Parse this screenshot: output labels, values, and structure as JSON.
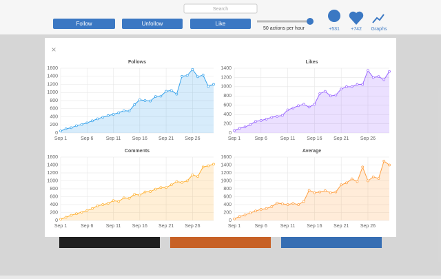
{
  "toolbar": {
    "search": "Search",
    "buttons": [
      "Follow",
      "Unfollow",
      "Like"
    ],
    "rate": "50 actions per hour",
    "stats": [
      "+531",
      "+742"
    ],
    "graphs": "Graphs"
  },
  "modal": {
    "close": "×"
  },
  "chart_data": [
    {
      "type": "line",
      "title": "Follows",
      "color": "#36a2eb",
      "categories": [
        "Sep 1",
        null,
        null,
        null,
        null,
        "Sep 6",
        null,
        null,
        null,
        null,
        "Sep 11",
        null,
        null,
        null,
        null,
        "Sep 16",
        null,
        null,
        null,
        null,
        "Sep 21",
        null,
        null,
        null,
        null,
        "Sep 26",
        null,
        null,
        null,
        null
      ],
      "values": [
        50,
        100,
        130,
        180,
        210,
        250,
        300,
        350,
        390,
        430,
        460,
        500,
        550,
        540,
        700,
        820,
        800,
        790,
        900,
        910,
        1030,
        1050,
        960,
        1400,
        1420,
        1570,
        1390,
        1430,
        1150,
        1200
      ],
      "ylim": [
        0,
        1600
      ],
      "yticks": [
        0,
        200,
        400,
        600,
        800,
        1000,
        1200,
        1400,
        1600
      ],
      "grid": true
    },
    {
      "type": "line",
      "title": "Likes",
      "color": "#9966ff",
      "categories": [
        "Sep 1",
        null,
        null,
        null,
        null,
        "Sep 6",
        null,
        null,
        null,
        null,
        "Sep 11",
        null,
        null,
        null,
        null,
        "Sep 16",
        null,
        null,
        null,
        null,
        "Sep 21",
        null,
        null,
        null,
        null,
        "Sep 26",
        null,
        null,
        null,
        null
      ],
      "values": [
        50,
        100,
        130,
        180,
        250,
        270,
        300,
        340,
        360,
        380,
        500,
        540,
        590,
        620,
        560,
        620,
        850,
        900,
        800,
        820,
        950,
        1000,
        1000,
        1050,
        1050,
        1350,
        1200,
        1220,
        1150,
        1330
      ],
      "ylim": [
        0,
        1400
      ],
      "yticks": [
        0,
        200,
        400,
        600,
        800,
        1000,
        1200,
        1400
      ],
      "grid": true
    },
    {
      "type": "line",
      "title": "Comments",
      "color": "#ffb030",
      "categories": [
        "Sep 1",
        null,
        null,
        null,
        null,
        "Sep 6",
        null,
        null,
        null,
        null,
        "Sep 11",
        null,
        null,
        null,
        null,
        "Sep 16",
        null,
        null,
        null,
        null,
        "Sep 21",
        null,
        null,
        null,
        null,
        "Sep 26",
        null,
        null,
        null,
        null
      ],
      "values": [
        30,
        80,
        130,
        170,
        210,
        250,
        300,
        370,
        400,
        430,
        500,
        480,
        570,
        560,
        660,
        640,
        720,
        730,
        790,
        830,
        830,
        900,
        980,
        960,
        1000,
        1150,
        1110,
        1350,
        1380,
        1420
      ],
      "ylim": [
        0,
        1600
      ],
      "yticks": [
        0,
        200,
        400,
        600,
        800,
        1000,
        1200,
        1400,
        1600
      ],
      "grid": true
    },
    {
      "type": "line",
      "title": "Average",
      "color": "#ff9f40",
      "categories": [
        "Sep 1",
        null,
        null,
        null,
        null,
        "Sep 6",
        null,
        null,
        null,
        null,
        "Sep 11",
        null,
        null,
        null,
        null,
        "Sep 16",
        null,
        null,
        null,
        null,
        "Sep 21",
        null,
        null,
        null,
        null,
        "Sep 26",
        null,
        null,
        null,
        null
      ],
      "values": [
        40,
        100,
        140,
        190,
        240,
        280,
        300,
        350,
        440,
        420,
        400,
        430,
        400,
        480,
        760,
        700,
        720,
        750,
        700,
        720,
        900,
        950,
        1050,
        980,
        1350,
        1000,
        1100,
        1060,
        1500,
        1400
      ],
      "ylim": [
        0,
        1600
      ],
      "yticks": [
        0,
        200,
        400,
        600,
        800,
        1000,
        1200,
        1400,
        1600
      ],
      "grid": true
    }
  ]
}
